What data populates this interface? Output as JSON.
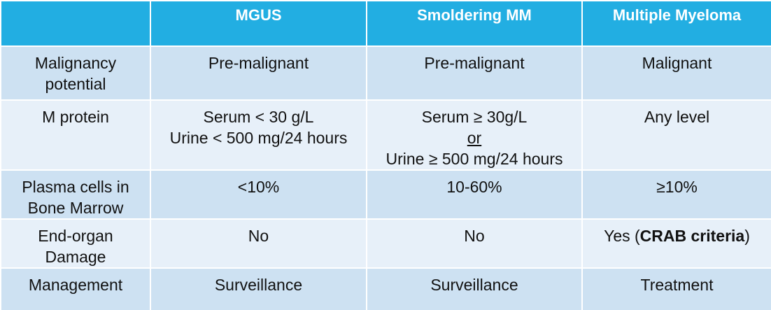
{
  "table": {
    "headers": [
      "",
      "MGUS",
      "Smoldering MM",
      "Multiple Myeloma"
    ],
    "rows": [
      {
        "label": [
          "Malignancy",
          "potential"
        ],
        "mgus": [
          "Pre-malignant"
        ],
        "smm": [
          "Pre-malignant"
        ],
        "mm": [
          "Malignant"
        ]
      },
      {
        "label": [
          "M protein"
        ],
        "mgus": [
          "Serum < 30 g/L",
          "Urine < 500 mg/24 hours"
        ],
        "smm": [
          "Serum ≥ 30g/L",
          "or",
          "Urine ≥ 500 mg/24 hours"
        ],
        "mm": [
          "Any level"
        ]
      },
      {
        "label": [
          "Plasma cells in",
          "Bone Marrow"
        ],
        "mgus": [
          "<10%"
        ],
        "smm": [
          "10-60%"
        ],
        "mm": [
          "≥10%"
        ]
      },
      {
        "label": [
          "End-organ",
          "Damage"
        ],
        "mgus": [
          "No"
        ],
        "smm": [
          "No"
        ],
        "mm_prefix": "Yes (",
        "mm_bold": "CRAB criteria",
        "mm_suffix": ")"
      },
      {
        "label": [
          "Management"
        ],
        "mgus": [
          "Surveillance"
        ],
        "smm": [
          "Surveillance"
        ],
        "mm": [
          "Treatment"
        ]
      }
    ]
  },
  "colors": {
    "header_bg": "#22aee2",
    "row_odd_bg": "#cde1f2",
    "row_even_bg": "#e7f0f9"
  }
}
